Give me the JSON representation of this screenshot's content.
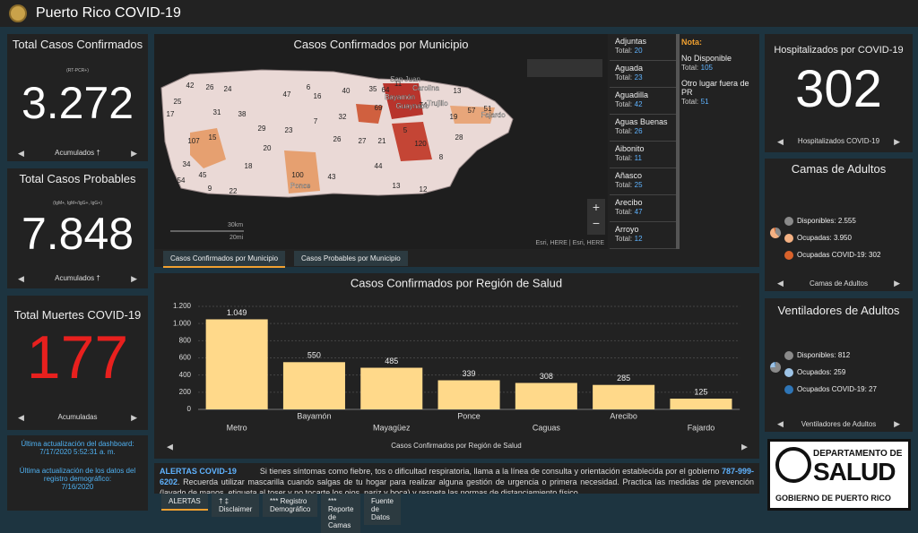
{
  "header": {
    "title": "Puerto Rico COVID-19"
  },
  "cards": {
    "confirmed": {
      "title": "Total Casos Confirmados",
      "subtitle": "(RT-PCR+)",
      "value": "3.272",
      "footer": "Acumulados †"
    },
    "probable": {
      "title": "Total Casos Probables",
      "subtitle": "(IgM+, IgM+/IgG+, IgG+)",
      "value": "7.848",
      "footer": "Acumulados †"
    },
    "deaths": {
      "title": "Total Muertes COVID-19",
      "value": "177",
      "footer": "Acumuladas"
    },
    "hospitalized": {
      "title": "Hospitalizados por COVID-19",
      "value": "302",
      "footer": "Hospitalizados COVID-19"
    }
  },
  "updates": {
    "dashboard_label": "Última actualización del dashboard:",
    "dashboard_date": "7/17/2020 5:52:31 a. m.",
    "data_label": "Última actualización de los datos del registro demográfico:",
    "data_date": "7/16/2020"
  },
  "map": {
    "title": "Casos Confirmados por Municipio",
    "tabs": [
      "Casos Confirmados por Municipio",
      "Casos Probables por Municipio"
    ],
    "scale": [
      "30km",
      "20mi"
    ],
    "attribution": "Esri, HERE | Esri, HERE",
    "labels": [
      42,
      26,
      24,
      47,
      6,
      16,
      40,
      35,
      64,
      11,
      25,
      31,
      17,
      38,
      69,
      74,
      13,
      19,
      32,
      57,
      51,
      107,
      15,
      20,
      26,
      27,
      21,
      120,
      28,
      34,
      45,
      100,
      43,
      9,
      22,
      13,
      12,
      54,
      18,
      29,
      23,
      7,
      5,
      8,
      44
    ],
    "places": [
      "San Juan",
      "Carolina",
      "Bayamón",
      "Guaynabo",
      "Trujillo",
      "Ponce",
      "Fajardo"
    ]
  },
  "municipalities": {
    "total_label": "Total:",
    "items": [
      {
        "name": "Adjuntas",
        "total": 20
      },
      {
        "name": "Aguada",
        "total": 23
      },
      {
        "name": "Aguadilla",
        "total": 42
      },
      {
        "name": "Aguas Buenas",
        "total": 26
      },
      {
        "name": "Aibonito",
        "total": 11
      },
      {
        "name": "Añasco",
        "total": 25
      },
      {
        "name": "Arecibo",
        "total": 47
      },
      {
        "name": "Arroyo",
        "total": 12
      }
    ]
  },
  "note": {
    "title": "Nota:",
    "items": [
      {
        "name": "No Disponible",
        "total": 105
      },
      {
        "name": "Otro lugar fuera de PR",
        "total": 51
      }
    ]
  },
  "beds": {
    "type": "pie",
    "title": "Camas de Adultos",
    "footer": "Camas de Adultos",
    "categories": [
      "Disponibles:",
      "Ocupadas:",
      "Ocupadas COVID-19:"
    ],
    "values": [
      2555,
      3950,
      302
    ],
    "value_labels": [
      "2.555",
      "3.950",
      "302"
    ],
    "colors": [
      "#8a8a8a",
      "#f4b183",
      "#d9622b"
    ]
  },
  "ventilators": {
    "type": "pie",
    "title": "Ventiladores de Adultos",
    "footer": "Ventiladores de Adultos",
    "categories": [
      "Disponibles:",
      "Ocupados:",
      "Ocupados COVID-19:"
    ],
    "values": [
      812,
      259,
      27
    ],
    "value_labels": [
      "812",
      "259",
      "27"
    ],
    "colors": [
      "#8a8a8a",
      "#9dc3e6",
      "#2e75b6"
    ]
  },
  "chart_data": {
    "type": "bar",
    "title": "Casos Confirmados por Región de Salud",
    "x_label": "Casos Confirmados por Región de Salud",
    "categories": [
      "Metro",
      "Bayamón",
      "Mayagüez",
      "Ponce",
      "Caguas",
      "Arecibo",
      "Fajardo"
    ],
    "values": [
      1049,
      550,
      485,
      339,
      308,
      285,
      125
    ],
    "value_labels": [
      "1.049",
      "550",
      "485",
      "339",
      "308",
      "285",
      "125"
    ],
    "color": "#ffd98a",
    "ylim": [
      0,
      1200
    ],
    "yticks": [
      0,
      200,
      400,
      600,
      800,
      {
        "value": 1000,
        "label": "1.000"
      },
      {
        "value": 1200,
        "label": "1.200"
      }
    ],
    "grid": true
  },
  "alerts": {
    "title": "ALERTAS COVID-19",
    "text_1": "Si tienes síntomas como fiebre, tos o dificultad respiratoria, llama a la línea de consulta y orientación establecida por el gobierno",
    "phone": "787-999-6202",
    "text_2": ". Recuerda utilizar mascarilla cuando salgas de tu hogar para realizar alguna gestión de urgencia o primera necesidad. Practica las medidas de prevención (lavado de manos, etiqueta al toser y no tocarte los ojos, nariz y boca) y respeta las normas de distanciamiento físico.",
    "tabs": [
      "ALERTAS",
      "† ‡ Disclaimer",
      "*** Registro Demográfico",
      "*** Reporte de Camas",
      "Fuente de Datos"
    ]
  },
  "logo": {
    "line_1": "DEPARTAMENTO DE",
    "line_2": "SALUD",
    "line_3": "GOBIERNO DE PUERTO RICO"
  }
}
